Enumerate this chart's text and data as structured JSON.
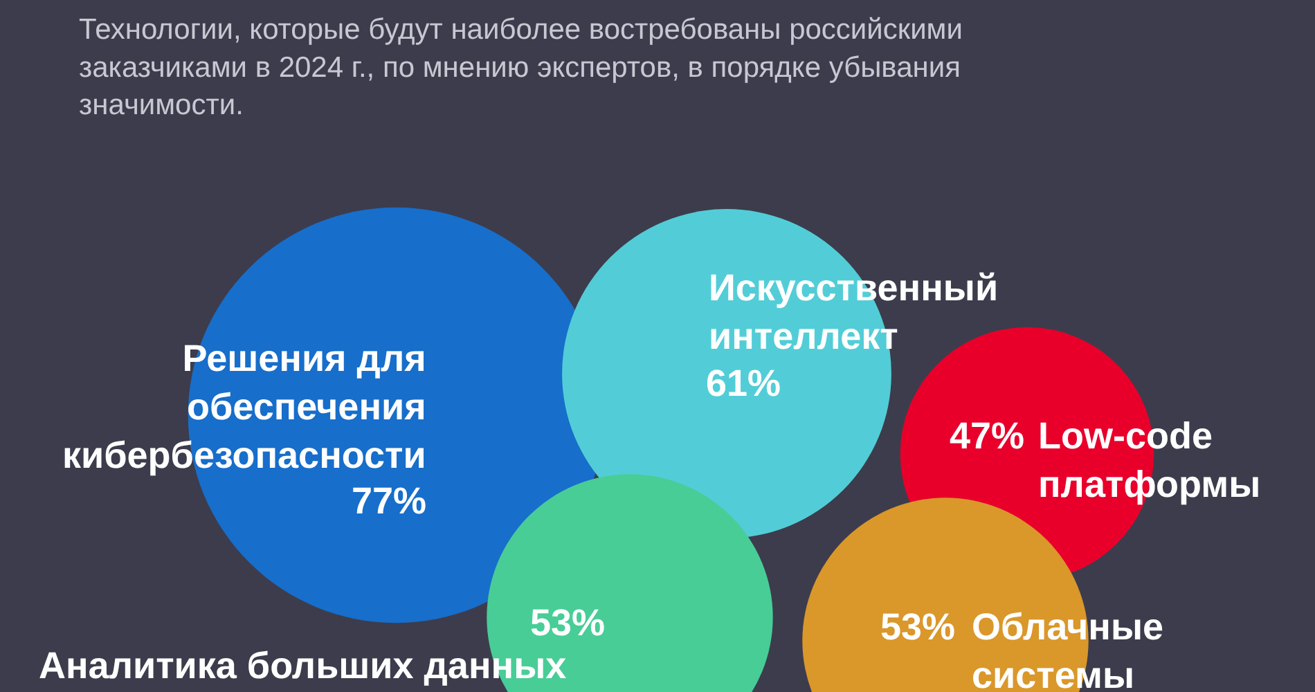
{
  "chart_data": {
    "type": "other",
    "title": "Технологии, которые будут наиболее востребованы российскими заказчиками в 2024 г., по мнению экспертов, в порядке убывания значимости.",
    "categories": [
      "Решения для обеспечения кибербезопасности",
      "Искусственный интеллект",
      "Low-code платформы",
      "Аналитика больших данных",
      "Облачные системы"
    ],
    "values": [
      77,
      61,
      47,
      53,
      53
    ],
    "value_labels": [
      "77%",
      "61%",
      "47%",
      "53%",
      "53%"
    ],
    "colors": [
      "#176ecb",
      "#52cdd7",
      "#e8002b",
      "#48cd97",
      "#da972a"
    ]
  }
}
